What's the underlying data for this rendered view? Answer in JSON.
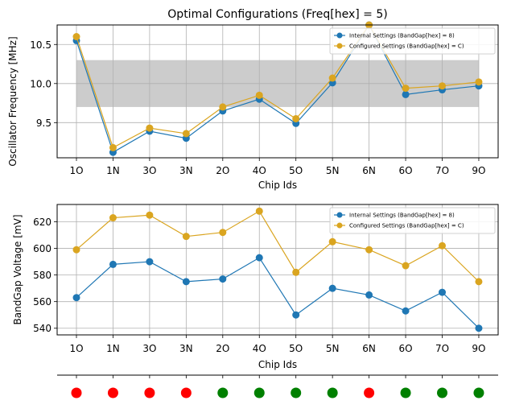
{
  "chart_data": [
    {
      "type": "line",
      "title": "Optimal Configurations  (Freq[hex] = 5)",
      "xlabel": "Chip Ids",
      "ylabel": "Oscillator Frequency [MHz]",
      "categories": [
        "1O",
        "1N",
        "3O",
        "3N",
        "2O",
        "4O",
        "5O",
        "5N",
        "6N",
        "6O",
        "7O",
        "9O"
      ],
      "ylim": [
        9.05,
        10.75
      ],
      "yticks": [
        9.5,
        10.0,
        10.5
      ],
      "ytick_labels": [
        "9.5",
        "10.0",
        "10.5"
      ],
      "band": [
        9.7,
        10.3
      ],
      "band_color": "#cccccc",
      "grid": true,
      "legend_position": "top-right",
      "series": [
        {
          "name": "Internal Settings (BandGap[hex] = 8)",
          "color": "#1f77b4",
          "values": [
            10.55,
            9.12,
            9.39,
            9.3,
            9.65,
            9.8,
            9.49,
            10.01,
            10.75,
            9.86,
            9.92,
            9.97
          ]
        },
        {
          "name": "Configured Settings (BandGap[hex] = C)",
          "color": "#daa520",
          "values": [
            10.6,
            9.18,
            9.43,
            9.36,
            9.7,
            9.85,
            9.55,
            10.07,
            10.75,
            9.94,
            9.97,
            10.02
          ]
        }
      ]
    },
    {
      "type": "line",
      "title": "",
      "xlabel": "Chip Ids",
      "ylabel": "BandGap Voltage [mV]",
      "categories": [
        "1O",
        "1N",
        "3O",
        "3N",
        "2O",
        "4O",
        "5O",
        "5N",
        "6N",
        "6O",
        "7O",
        "9O"
      ],
      "ylim": [
        535,
        633
      ],
      "yticks": [
        540,
        560,
        580,
        600,
        620
      ],
      "ytick_labels": [
        "540",
        "560",
        "580",
        "600",
        "620"
      ],
      "grid": true,
      "legend_position": "top-right",
      "series": [
        {
          "name": "Internal Settings (BandGap[hex] = 8)",
          "color": "#1f77b4",
          "values": [
            563,
            588,
            590,
            575,
            577,
            593,
            550,
            570,
            565,
            553,
            567,
            540
          ]
        },
        {
          "name": "Configured Settings (BandGap[hex] = C)",
          "color": "#daa520",
          "values": [
            599,
            623,
            625,
            609,
            612,
            628,
            582,
            605,
            599,
            587,
            602,
            575
          ]
        }
      ]
    },
    {
      "type": "scatter",
      "categories": [
        "1O",
        "1N",
        "3O",
        "3N",
        "2O",
        "4O",
        "5O",
        "5N",
        "6N",
        "6O",
        "7O",
        "9O"
      ],
      "status": [
        "red",
        "red",
        "red",
        "red",
        "green",
        "green",
        "green",
        "green",
        "red",
        "green",
        "green",
        "green"
      ],
      "colors": {
        "red": "#ff0000",
        "green": "#008000"
      }
    }
  ]
}
